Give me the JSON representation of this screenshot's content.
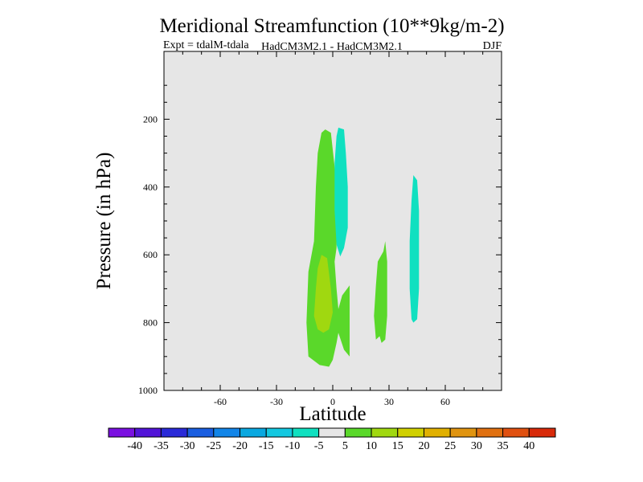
{
  "chart_data": {
    "type": "contour",
    "title": "Meridional Streamfunction (10**9kg/m-2)",
    "subtitle_left": "Expt = tdalM-tdala",
    "subtitle_center": "HadCM3M2.1 - HadCM3M2.1",
    "subtitle_right": "DJF",
    "xlabel": "Latitude",
    "ylabel": "Pressure (in hPa)",
    "xlim": [
      -90,
      90
    ],
    "ylim": [
      1000,
      0
    ],
    "x_ticks": [
      -60,
      -30,
      0,
      30,
      60
    ],
    "x_tick_labels": [
      "-60",
      "-30",
      "0",
      "30",
      "60"
    ],
    "y_ticks": [
      200,
      400,
      600,
      800,
      1000
    ],
    "y_tick_labels": [
      "200",
      "400",
      "600",
      "800",
      "1000"
    ],
    "background_color": "#e6e6e6",
    "colorbar": {
      "levels": [
        -40,
        -35,
        -30,
        -25,
        -20,
        -15,
        -10,
        -5,
        5,
        10,
        15,
        20,
        25,
        30,
        35,
        40
      ],
      "labels": [
        "-40",
        "-35",
        "-30",
        "-25",
        "-20",
        "-15",
        "-10",
        "-5",
        "5",
        "10",
        "15",
        "20",
        "25",
        "30",
        "35",
        "40"
      ],
      "colors": [
        "#7a10e0",
        "#5214d8",
        "#2a2ad8",
        "#1a5ee0",
        "#1285e8",
        "#0aa8e0",
        "#14c8e0",
        "#10e0c0",
        "#e6e6e6",
        "#5ad82a",
        "#a0d810",
        "#d0d000",
        "#e0b000",
        "#e09410",
        "#e07010",
        "#e05010",
        "#d82a0a"
      ]
    },
    "regions": [
      {
        "name": "positive-5-10-lower-column",
        "value_range": "5 to 10",
        "color": "#5ad82a",
        "points": [
          [
            -4,
            230
          ],
          [
            -1,
            240
          ],
          [
            1,
            340
          ],
          [
            2,
            430
          ],
          [
            2,
            500
          ],
          [
            2,
            580
          ],
          [
            1,
            620
          ],
          [
            2,
            700
          ],
          [
            3,
            760
          ],
          [
            5,
            720
          ],
          [
            9,
            690
          ],
          [
            9,
            780
          ],
          [
            9,
            900
          ],
          [
            6,
            880
          ],
          [
            3,
            830
          ],
          [
            2,
            860
          ],
          [
            0,
            910
          ],
          [
            -2,
            930
          ],
          [
            -7,
            925
          ],
          [
            -13,
            900
          ],
          [
            -14,
            800
          ],
          [
            -13,
            650
          ],
          [
            -10,
            560
          ],
          [
            -9,
            400
          ],
          [
            -8,
            300
          ],
          [
            -6,
            240
          ]
        ]
      },
      {
        "name": "positive-10-15-core",
        "value_range": "10 to 15",
        "color": "#a0d810",
        "points": [
          [
            -6,
            600
          ],
          [
            -3,
            610
          ],
          [
            -1,
            700
          ],
          [
            0,
            770
          ],
          [
            -2,
            820
          ],
          [
            -5,
            830
          ],
          [
            -8,
            820
          ],
          [
            -10,
            780
          ],
          [
            -9,
            700
          ],
          [
            -8,
            640
          ]
        ]
      },
      {
        "name": "negative-neg5-neg10-upper-column",
        "value_range": "-10 to -5",
        "color": "#10e0c0",
        "points": [
          [
            3,
            225
          ],
          [
            6,
            230
          ],
          [
            7,
            300
          ],
          [
            8,
            400
          ],
          [
            8,
            520
          ],
          [
            6,
            580
          ],
          [
            4,
            605
          ],
          [
            2,
            570
          ],
          [
            1,
            470
          ],
          [
            1,
            330
          ],
          [
            2,
            250
          ]
        ]
      },
      {
        "name": "positive-5-10-mid-latitude-cell",
        "value_range": "5 to 10",
        "color": "#5ad82a",
        "points": [
          [
            23,
            690
          ],
          [
            24,
            620
          ],
          [
            25,
            610
          ],
          [
            27,
            590
          ],
          [
            28,
            560
          ],
          [
            29,
            620
          ],
          [
            29,
            700
          ],
          [
            29,
            780
          ],
          [
            28,
            850
          ],
          [
            26,
            860
          ],
          [
            25,
            840
          ],
          [
            23,
            850
          ],
          [
            22,
            780
          ]
        ]
      },
      {
        "name": "negative-neg5-neg10-high-latitude-cell",
        "value_range": "-10 to -5",
        "color": "#10e0c0",
        "points": [
          [
            43,
            365
          ],
          [
            45,
            380
          ],
          [
            46,
            470
          ],
          [
            46,
            600
          ],
          [
            46,
            700
          ],
          [
            45,
            790
          ],
          [
            43,
            800
          ],
          [
            42,
            790
          ],
          [
            41,
            700
          ],
          [
            41,
            560
          ],
          [
            42,
            440
          ]
        ]
      }
    ]
  }
}
